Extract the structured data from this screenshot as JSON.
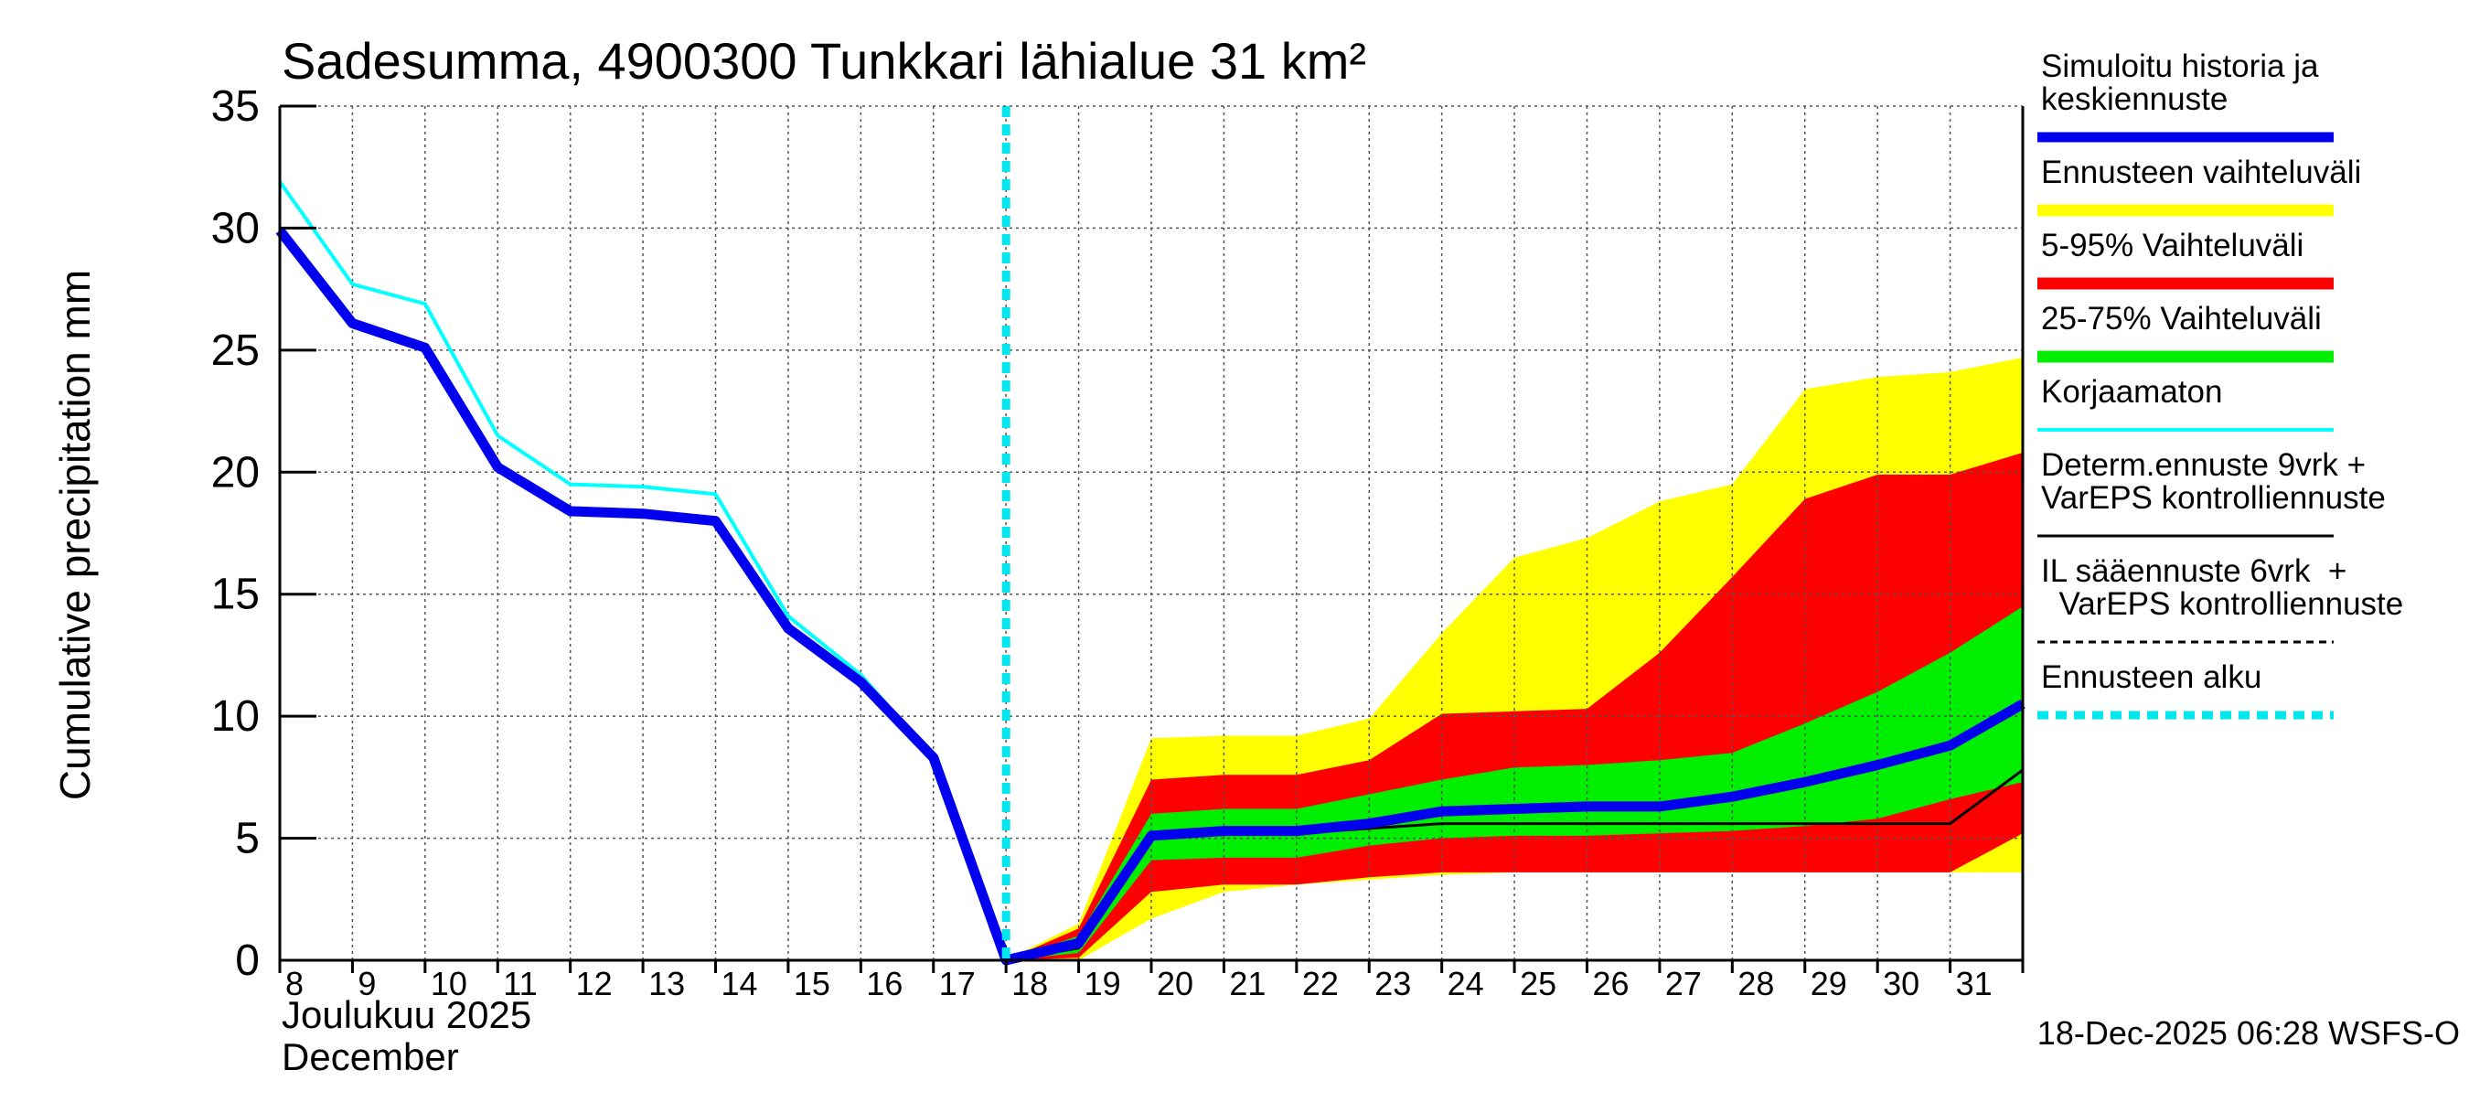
{
  "chart_data": {
    "type": "area",
    "title": "Sadesumma, 4900300 Tunkkari lähialue 31 km²",
    "ylabel": "Cumulative precipitation   mm",
    "xlabel_month_fi": "Joulukuu  2025",
    "xlabel_month_en": "December",
    "ylim": [
      0,
      35
    ],
    "yticks": [
      0,
      5,
      10,
      15,
      20,
      25,
      30,
      35
    ],
    "x_start_day": 8,
    "x_end_day": 32,
    "xtick_labels": [
      "8",
      "9",
      "10",
      "11",
      "12",
      "13",
      "14",
      "15",
      "16",
      "17",
      "18",
      "19",
      "20",
      "21",
      "22",
      "23",
      "24",
      "25",
      "26",
      "27",
      "28",
      "29",
      "30",
      "31"
    ],
    "forecast_start_day": 18,
    "timestamp": "18-Dec-2025 06:28 WSFS-O",
    "legend": [
      {
        "key": "simulated",
        "label_lines": [
          "Simuloitu historia ja",
          "keskiennuste"
        ],
        "color": "#0000ee",
        "style": "thick"
      },
      {
        "key": "range",
        "label_lines": [
          "Ennusteen vaihteluväli"
        ],
        "color": "#ffff00",
        "style": "band"
      },
      {
        "key": "p5_95",
        "label_lines": [
          "5-95% Vaihteluväli"
        ],
        "color": "#ff0000",
        "style": "band"
      },
      {
        "key": "p25_75",
        "label_lines": [
          "25-75% Vaihteluväli"
        ],
        "color": "#00ee00",
        "style": "band"
      },
      {
        "key": "uncorrected",
        "label_lines": [
          "Korjaamaton"
        ],
        "color": "#00ffff",
        "style": "thin"
      },
      {
        "key": "determ",
        "label_lines": [
          "Determ.ennuste 9vrk +",
          "VarEPS kontrolliennuste"
        ],
        "color": "#000000",
        "style": "line"
      },
      {
        "key": "il",
        "label_lines": [
          "IL sääennuste 6vrk  +",
          "  VarEPS kontrolliennuste"
        ],
        "color": "#000000",
        "style": "dashed"
      },
      {
        "key": "forecast_start",
        "label_lines": [
          "Ennusteen alku"
        ],
        "color": "#00e5ee",
        "style": "dotted"
      }
    ],
    "series": {
      "forecast_x": [
        18,
        19,
        20,
        21,
        22,
        23,
        24,
        25,
        26,
        27,
        28,
        29,
        30,
        31,
        32
      ],
      "range_upper": [
        0,
        1.5,
        9.1,
        9.2,
        9.2,
        9.9,
        13.4,
        16.5,
        17.3,
        18.8,
        19.5,
        23.4,
        23.9,
        24.1,
        24.7
      ],
      "range_lower": [
        0,
        0.0,
        1.7,
        2.8,
        3.1,
        3.3,
        3.5,
        3.6,
        3.6,
        3.6,
        3.6,
        3.6,
        3.6,
        3.6,
        3.6
      ],
      "p95": [
        0,
        1.3,
        7.4,
        7.6,
        7.6,
        8.2,
        10.1,
        10.2,
        10.3,
        12.6,
        15.7,
        18.9,
        19.9,
        19.9,
        20.8
      ],
      "p5": [
        0,
        0.1,
        2.8,
        3.1,
        3.1,
        3.4,
        3.6,
        3.6,
        3.6,
        3.6,
        3.6,
        3.6,
        3.6,
        3.6,
        5.2
      ],
      "p75": [
        0,
        1.0,
        6.0,
        6.2,
        6.2,
        6.8,
        7.4,
        7.9,
        8.0,
        8.2,
        8.5,
        9.7,
        11.0,
        12.6,
        14.5
      ],
      "p25": [
        0,
        0.3,
        4.1,
        4.2,
        4.2,
        4.7,
        5.0,
        5.1,
        5.1,
        5.2,
        5.3,
        5.5,
        5.8,
        6.6,
        7.3
      ],
      "simulated_x": [
        8,
        9,
        10,
        11,
        12,
        13,
        14,
        15,
        16,
        17,
        18,
        19,
        20,
        21,
        22,
        23,
        24,
        25,
        26,
        27,
        28,
        29,
        30,
        31,
        32
      ],
      "simulated": [
        29.9,
        26.1,
        25.1,
        20.2,
        18.4,
        18.3,
        18.0,
        13.6,
        11.4,
        8.3,
        0,
        0.7,
        5.1,
        5.3,
        5.3,
        5.6,
        6.1,
        6.2,
        6.3,
        6.3,
        6.7,
        7.3,
        8.0,
        8.8,
        10.5
      ],
      "uncorrected_x": [
        8,
        9,
        10,
        11,
        12,
        13,
        14,
        15,
        16,
        17,
        18
      ],
      "uncorrected": [
        31.9,
        27.7,
        26.9,
        21.5,
        19.5,
        19.4,
        19.1,
        14.1,
        11.7,
        8.3,
        0
      ],
      "determ_x": [
        18,
        19,
        20,
        21,
        22,
        23,
        24,
        25,
        26,
        27,
        28,
        29,
        30,
        31,
        32
      ],
      "determ": [
        0,
        0.5,
        5.0,
        5.2,
        5.2,
        5.4,
        5.6,
        5.6,
        5.6,
        5.6,
        5.6,
        5.6,
        5.6,
        5.6,
        7.8
      ]
    }
  }
}
